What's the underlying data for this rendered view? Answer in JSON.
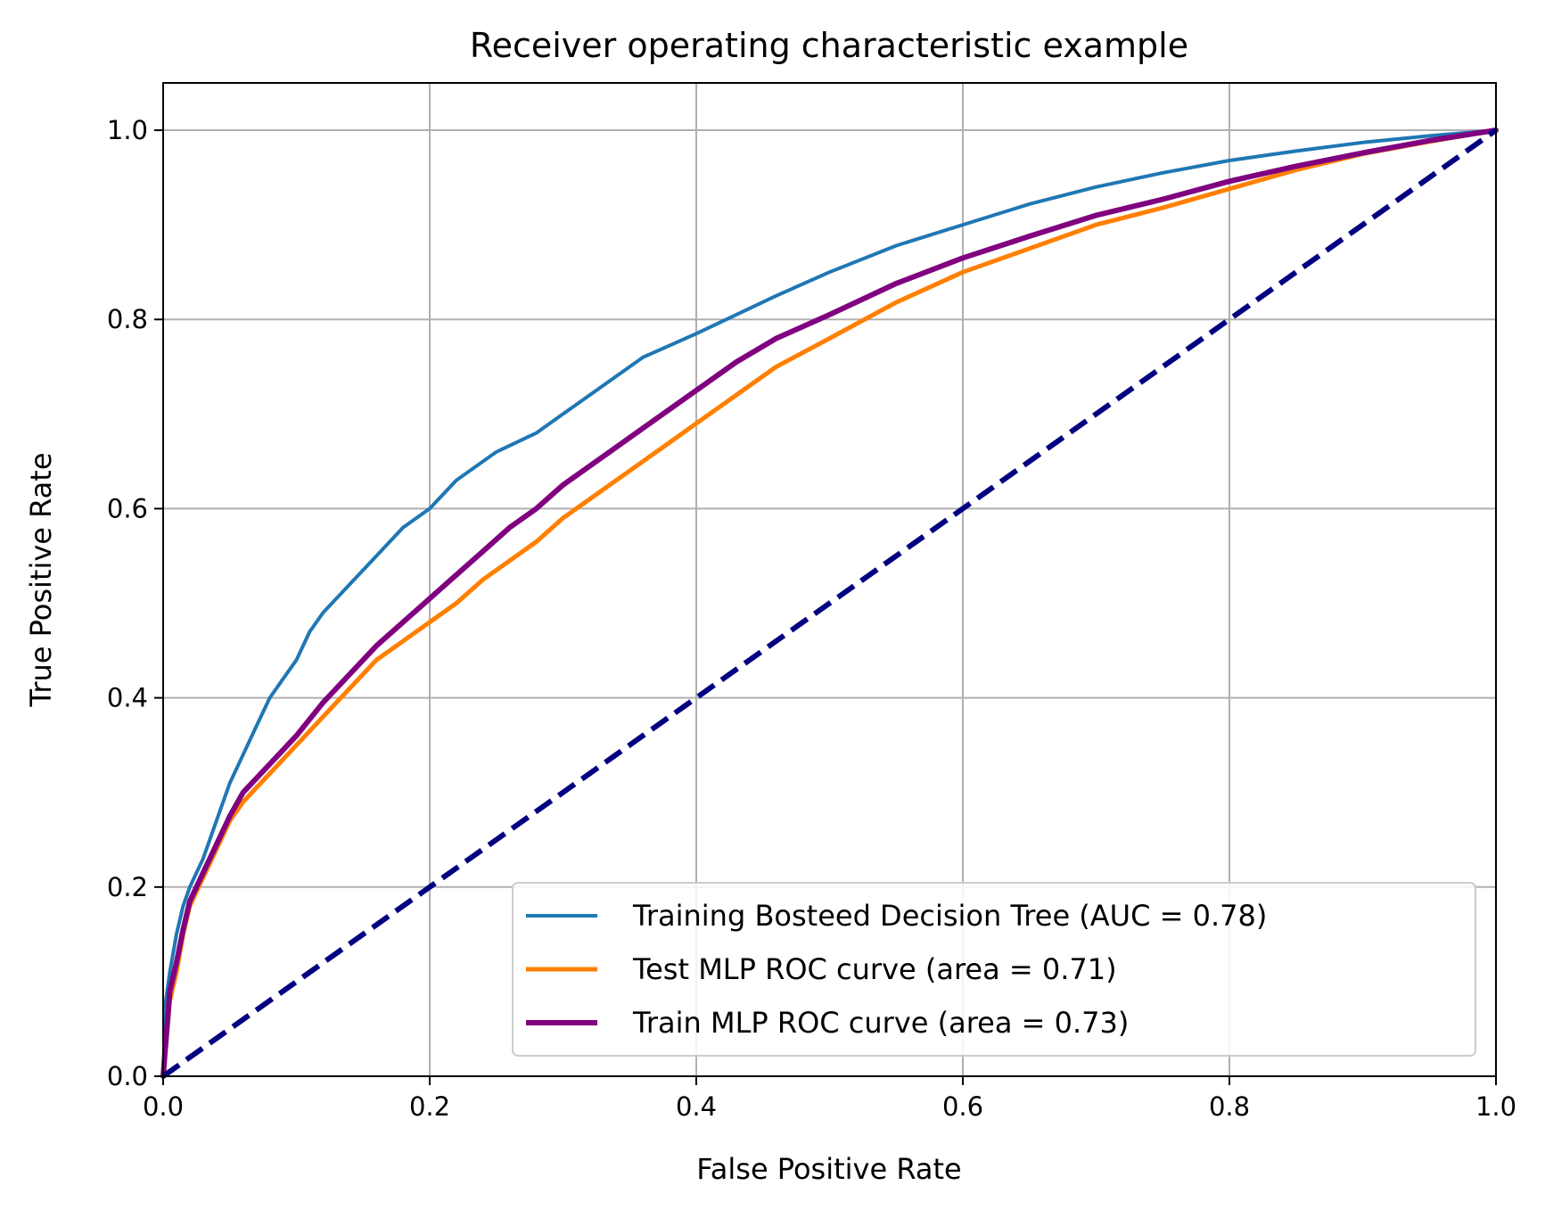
{
  "chart_data": {
    "type": "line",
    "title": "Receiver operating characteristic example",
    "xlabel": "False Positive Rate",
    "ylabel": "True Positive Rate",
    "xlim": [
      0.0,
      1.0
    ],
    "ylim": [
      0.0,
      1.05
    ],
    "xticks": [
      "0.0",
      "0.2",
      "0.4",
      "0.6",
      "0.8",
      "1.0"
    ],
    "yticks": [
      "0.0",
      "0.2",
      "0.4",
      "0.6",
      "0.8",
      "1.0"
    ],
    "grid": true,
    "legend_position": "lower-right",
    "series": [
      {
        "name": "Training Bosteed Decision Tree (AUC = 0.78)",
        "color": "#1f77b4",
        "dash": false,
        "x": [
          0,
          0.002,
          0.005,
          0.01,
          0.015,
          0.02,
          0.03,
          0.04,
          0.05,
          0.06,
          0.07,
          0.08,
          0.09,
          0.1,
          0.11,
          0.12,
          0.14,
          0.16,
          0.18,
          0.2,
          0.22,
          0.25,
          0.28,
          0.3,
          0.33,
          0.36,
          0.4,
          0.43,
          0.46,
          0.5,
          0.55,
          0.6,
          0.65,
          0.7,
          0.75,
          0.8,
          0.85,
          0.9,
          0.95,
          1.0
        ],
        "y": [
          0,
          0.08,
          0.11,
          0.15,
          0.18,
          0.2,
          0.23,
          0.27,
          0.31,
          0.34,
          0.37,
          0.4,
          0.42,
          0.44,
          0.47,
          0.49,
          0.52,
          0.55,
          0.58,
          0.6,
          0.63,
          0.66,
          0.68,
          0.7,
          0.73,
          0.76,
          0.785,
          0.805,
          0.825,
          0.85,
          0.878,
          0.9,
          0.922,
          0.94,
          0.955,
          0.968,
          0.978,
          0.987,
          0.994,
          1.0
        ]
      },
      {
        "name": "Test MLP ROC curve (area = 0.71)",
        "color": "#ff8000",
        "dash": false,
        "x": [
          0,
          0.005,
          0.01,
          0.015,
          0.02,
          0.03,
          0.04,
          0.05,
          0.06,
          0.08,
          0.1,
          0.12,
          0.14,
          0.16,
          0.18,
          0.2,
          0.22,
          0.24,
          0.26,
          0.28,
          0.3,
          0.32,
          0.35,
          0.38,
          0.4,
          0.43,
          0.46,
          0.5,
          0.55,
          0.6,
          0.65,
          0.7,
          0.75,
          0.8,
          0.85,
          0.9,
          0.95,
          1.0
        ],
        "y": [
          0,
          0.08,
          0.11,
          0.15,
          0.18,
          0.21,
          0.24,
          0.27,
          0.29,
          0.32,
          0.35,
          0.38,
          0.41,
          0.44,
          0.46,
          0.48,
          0.5,
          0.525,
          0.545,
          0.565,
          0.59,
          0.61,
          0.64,
          0.67,
          0.69,
          0.72,
          0.75,
          0.78,
          0.818,
          0.85,
          0.875,
          0.9,
          0.918,
          0.938,
          0.958,
          0.975,
          0.988,
          1.0
        ]
      },
      {
        "name": "Train MLP ROC curve (area = 0.73)",
        "color": "#800080",
        "dash": false,
        "x": [
          0,
          0.005,
          0.01,
          0.015,
          0.02,
          0.03,
          0.04,
          0.05,
          0.06,
          0.08,
          0.1,
          0.12,
          0.14,
          0.16,
          0.18,
          0.2,
          0.22,
          0.24,
          0.26,
          0.28,
          0.3,
          0.33,
          0.36,
          0.4,
          0.43,
          0.46,
          0.5,
          0.55,
          0.6,
          0.65,
          0.7,
          0.75,
          0.8,
          0.85,
          0.9,
          0.95,
          1.0
        ],
        "y": [
          0,
          0.09,
          0.12,
          0.155,
          0.185,
          0.215,
          0.245,
          0.275,
          0.3,
          0.33,
          0.36,
          0.395,
          0.425,
          0.455,
          0.48,
          0.505,
          0.53,
          0.555,
          0.58,
          0.6,
          0.625,
          0.655,
          0.685,
          0.725,
          0.755,
          0.78,
          0.805,
          0.838,
          0.865,
          0.888,
          0.91,
          0.927,
          0.946,
          0.962,
          0.976,
          0.989,
          1.0
        ]
      },
      {
        "name": "",
        "color": "#000080",
        "dash": true,
        "x": [
          0,
          1
        ],
        "y": [
          0,
          1
        ]
      }
    ]
  }
}
